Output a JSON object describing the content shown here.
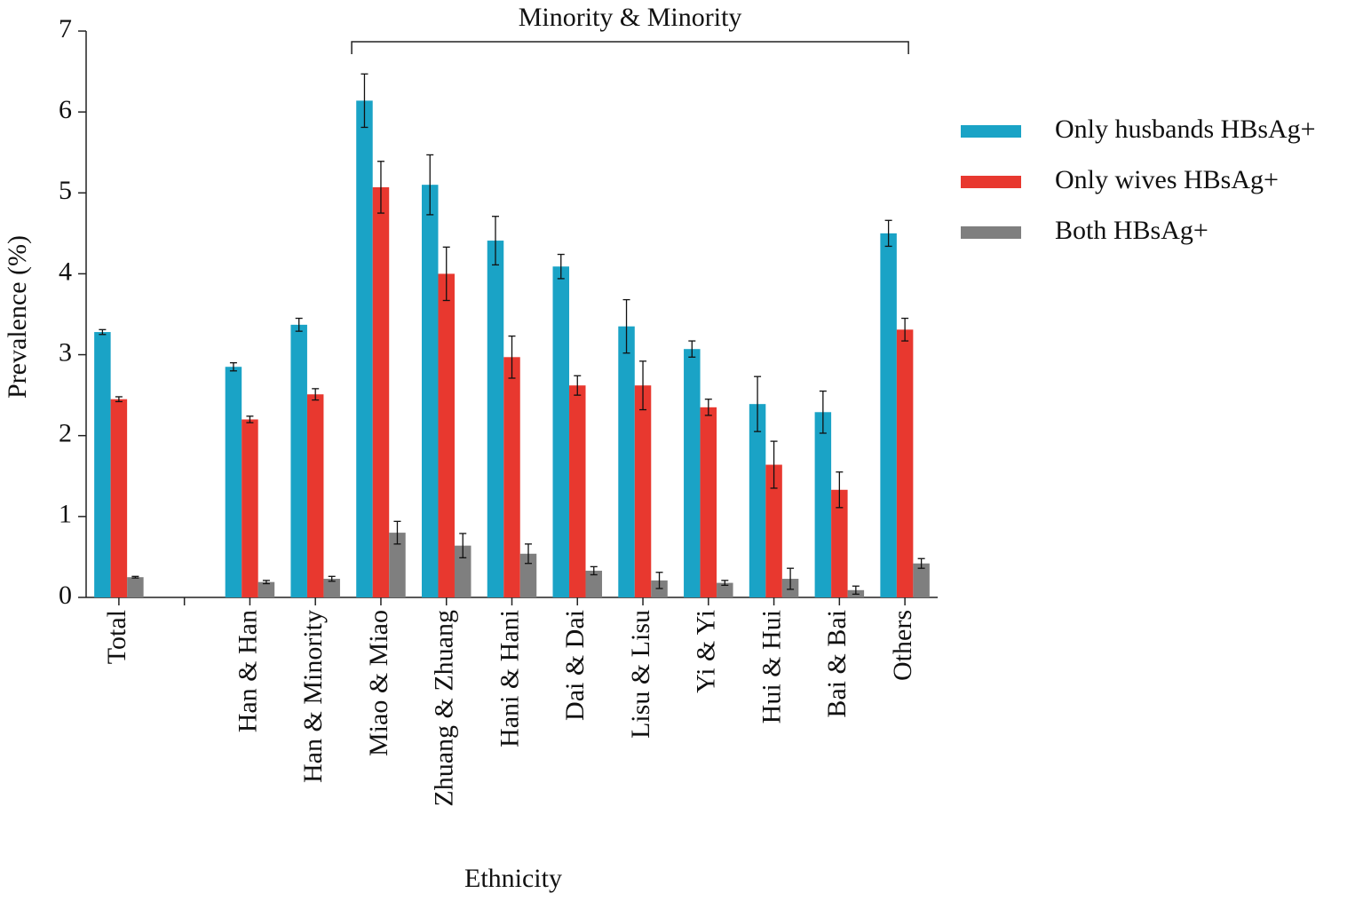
{
  "chart_data": {
    "type": "bar",
    "x_label": "Ethnicity",
    "y_label": "Prevalence (%)",
    "categories": [
      "Total",
      null,
      "Han & Han",
      "Han & Minority",
      "Miao & Miao",
      "Zhuang & Zhuang",
      "Hani & Hani",
      "Dai & Dai",
      "Lisu & Lisu",
      "Yi & Yi",
      "Hui & Hui",
      "Bai & Bai",
      "Others"
    ],
    "series": [
      {
        "name": "Only husbands HBsAg+",
        "color": "#1aa3c6",
        "values": [
          3.28,
          null,
          2.85,
          3.37,
          6.14,
          5.1,
          4.41,
          4.09,
          3.35,
          3.07,
          2.39,
          2.29,
          4.5
        ],
        "errors": [
          0.03,
          null,
          0.05,
          0.08,
          0.33,
          0.37,
          0.3,
          0.15,
          0.33,
          0.1,
          0.34,
          0.26,
          0.16
        ]
      },
      {
        "name": "Only wives HBsAg+",
        "color": "#e8382f",
        "values": [
          2.45,
          null,
          2.2,
          2.51,
          5.07,
          4.0,
          2.97,
          2.62,
          2.62,
          2.35,
          1.64,
          1.33,
          3.31
        ],
        "errors": [
          0.03,
          null,
          0.04,
          0.07,
          0.32,
          0.33,
          0.26,
          0.12,
          0.3,
          0.1,
          0.29,
          0.22,
          0.14
        ]
      },
      {
        "name": "Both HBsAg+",
        "color": "#7f7f7f",
        "values": [
          0.25,
          null,
          0.19,
          0.23,
          0.8,
          0.64,
          0.54,
          0.33,
          0.21,
          0.18,
          0.23,
          0.09,
          0.42
        ],
        "errors": [
          0.01,
          null,
          0.02,
          0.03,
          0.14,
          0.15,
          0.12,
          0.05,
          0.1,
          0.03,
          0.13,
          0.05,
          0.06
        ]
      }
    ],
    "ylim": [
      0,
      7
    ],
    "yticks": [
      0,
      1,
      2,
      3,
      4,
      5,
      6,
      7
    ],
    "grid": false,
    "legend": "right",
    "annotation": {
      "text": "Minority & Minority",
      "span": [
        "Miao & Miao",
        "Others"
      ]
    }
  }
}
